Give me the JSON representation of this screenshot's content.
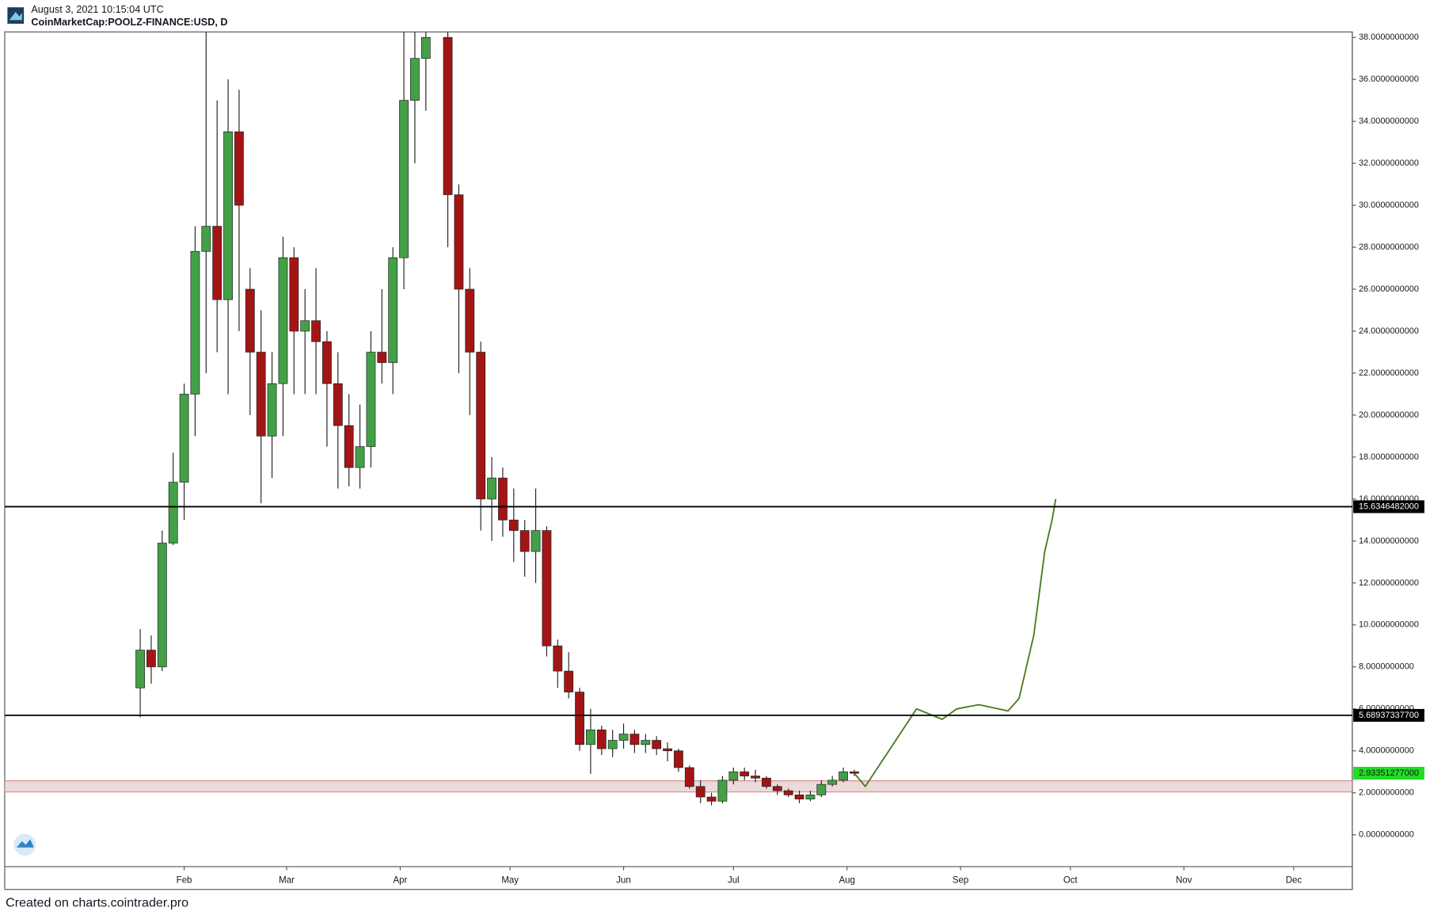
{
  "chart_data": {
    "type": "candlestick",
    "subtitle": "August 3, 2021 10:15:04 UTC",
    "title": "CoinMarketCap:POOLZ-FINANCE:USD, D",
    "credit": "Created on charts.cointrader.pro",
    "up_color": "#43a047",
    "down_color": "#a31515",
    "x": [
      "2021-01-20",
      "2021-01-23",
      "2021-01-26",
      "2021-01-29",
      "2021-02-01",
      "2021-02-04",
      "2021-02-07",
      "2021-02-10",
      "2021-02-13",
      "2021-02-16",
      "2021-02-19",
      "2021-02-22",
      "2021-02-25",
      "2021-02-28",
      "2021-03-03",
      "2021-03-06",
      "2021-03-09",
      "2021-03-12",
      "2021-03-15",
      "2021-03-18",
      "2021-03-21",
      "2021-03-24",
      "2021-03-27",
      "2021-03-30",
      "2021-04-02",
      "2021-04-05",
      "2021-04-08",
      "2021-04-14",
      "2021-04-17",
      "2021-04-20",
      "2021-04-23",
      "2021-04-26",
      "2021-04-29",
      "2021-05-02",
      "2021-05-05",
      "2021-05-08",
      "2021-05-11",
      "2021-05-14",
      "2021-05-17",
      "2021-05-20",
      "2021-05-23",
      "2021-05-26",
      "2021-05-29",
      "2021-06-01",
      "2021-06-04",
      "2021-06-07",
      "2021-06-10",
      "2021-06-13",
      "2021-06-16",
      "2021-06-19",
      "2021-06-22",
      "2021-06-25",
      "2021-06-28",
      "2021-07-01",
      "2021-07-04",
      "2021-07-07",
      "2021-07-10",
      "2021-07-13",
      "2021-07-16",
      "2021-07-19",
      "2021-07-22",
      "2021-07-25",
      "2021-07-28",
      "2021-07-31",
      "2021-08-03"
    ],
    "open": [
      7.0,
      8.8,
      8.0,
      13.9,
      16.8,
      21.0,
      27.8,
      29,
      25.5,
      33.5,
      26,
      23,
      19,
      21.5,
      27.5,
      24,
      24.5,
      23.5,
      21.5,
      19.5,
      17.5,
      18.5,
      23,
      22.5,
      27.5,
      35,
      37,
      38,
      30.5,
      26,
      23,
      16,
      17,
      15,
      14.5,
      13.5,
      14.5,
      9,
      7.8,
      6.8,
      4.3,
      5.0,
      4.1,
      4.5,
      4.8,
      4.3,
      4.5,
      4.1,
      4.0,
      3.2,
      2.3,
      1.8,
      1.6,
      2.6,
      3.0,
      2.8,
      2.7,
      2.3,
      2.1,
      1.9,
      1.7,
      1.9,
      2.4,
      2.6,
      3.0
    ],
    "high": [
      9.8,
      9.5,
      14.5,
      18.2,
      21.5,
      29,
      38.3,
      35,
      36,
      35.5,
      27,
      25,
      23,
      28.5,
      28,
      26,
      27,
      24,
      23,
      21,
      20.5,
      24,
      26,
      28,
      38.3,
      38.3,
      38.3,
      38.3,
      31,
      27,
      23.5,
      18,
      17.5,
      16.5,
      15,
      16.5,
      14.7,
      9.3,
      8.7,
      7.0,
      6.0,
      5.2,
      5.0,
      5.3,
      5.0,
      4.8,
      4.7,
      4.4,
      4.1,
      3.3,
      2.6,
      2.0,
      2.8,
      3.2,
      3.2,
      3.1,
      2.8,
      2.4,
      2.2,
      2.1,
      2.1,
      2.6,
      2.8,
      3.2,
      3.1
    ],
    "low": [
      5.6,
      7.2,
      7.8,
      13.8,
      15.0,
      19.0,
      22,
      23,
      21,
      24,
      20,
      15.8,
      17,
      19,
      21,
      21,
      21,
      18.5,
      16.5,
      16.6,
      16.5,
      17.5,
      21.5,
      21,
      26,
      32,
      34.5,
      28,
      22,
      20,
      14.5,
      14,
      14.2,
      13,
      12.3,
      12.0,
      8.5,
      7.0,
      6.5,
      4.0,
      2.9,
      3.8,
      3.7,
      4.1,
      3.9,
      3.9,
      3.8,
      3.5,
      3.0,
      2.2,
      1.5,
      1.4,
      1.5,
      2.4,
      2.6,
      2.5,
      2.2,
      1.9,
      1.8,
      1.5,
      1.6,
      1.8,
      2.3,
      2.5,
      2.8
    ],
    "close": [
      8.8,
      8.0,
      13.9,
      16.8,
      21.0,
      27.8,
      29,
      25.5,
      33.5,
      30,
      23,
      19,
      21.5,
      27.5,
      24,
      24.5,
      23.5,
      21.5,
      19.5,
      17.5,
      18.5,
      23,
      22.5,
      27.5,
      35,
      37,
      38,
      30.5,
      26,
      23,
      16,
      17,
      15,
      14.5,
      13.5,
      14.5,
      9.0,
      7.8,
      6.8,
      4.3,
      5.0,
      4.1,
      4.5,
      4.8,
      4.3,
      4.5,
      4.1,
      4.0,
      3.2,
      2.3,
      1.8,
      1.6,
      2.6,
      3.0,
      2.8,
      2.7,
      2.3,
      2.1,
      1.9,
      1.7,
      1.9,
      2.4,
      2.6,
      3.0,
      2.93
    ],
    "levels": [
      {
        "value": 15.6346482,
        "label": "15.6346482000"
      },
      {
        "value": 5.689373377,
        "label": "5.68937337700"
      }
    ],
    "last_price": {
      "value": 2.93351277,
      "label": "2.93351277000",
      "color": "#22dd22"
    },
    "zone": [
      2.04,
      2.57
    ],
    "projection": {
      "color": "#4a7a1f",
      "x": [
        "2021-08-03",
        "2021-08-06",
        "2021-08-20",
        "2021-08-27",
        "2021-08-31",
        "2021-09-06",
        "2021-09-14",
        "2021-09-17",
        "2021-09-21",
        "2021-09-24",
        "2021-09-26",
        "2021-09-27"
      ],
      "values": [
        2.93,
        2.3,
        6.0,
        5.5,
        6.0,
        6.2,
        5.9,
        6.5,
        9.5,
        13.5,
        15,
        16.0
      ]
    },
    "xlim": [
      "2020-12-14",
      "2021-12-17"
    ],
    "xticks": [
      {
        "value": "2021-02-01",
        "label": "Feb"
      },
      {
        "value": "2021-03-01",
        "label": "Mar"
      },
      {
        "value": "2021-04-01",
        "label": "Apr"
      },
      {
        "value": "2021-05-01",
        "label": "May"
      },
      {
        "value": "2021-06-01",
        "label": "Jun"
      },
      {
        "value": "2021-07-01",
        "label": "Jul"
      },
      {
        "value": "2021-08-01",
        "label": "Aug"
      },
      {
        "value": "2021-09-01",
        "label": "Sep"
      },
      {
        "value": "2021-10-01",
        "label": "Oct"
      },
      {
        "value": "2021-11-01",
        "label": "Nov"
      },
      {
        "value": "2021-12-01",
        "label": "Dec"
      }
    ],
    "ylim": [
      -1.52,
      38.26
    ],
    "yticks": [
      {
        "value": 0,
        "label": "0.0000000000"
      },
      {
        "value": 2,
        "label": "2.0000000000"
      },
      {
        "value": 4,
        "label": "4.0000000000"
      },
      {
        "value": 6,
        "label": "6.0000000000"
      },
      {
        "value": 8,
        "label": "8.0000000000"
      },
      {
        "value": 10,
        "label": "10.0000000000"
      },
      {
        "value": 12,
        "label": "12.0000000000"
      },
      {
        "value": 14,
        "label": "14.0000000000"
      },
      {
        "value": 16,
        "label": "16.0000000000"
      },
      {
        "value": 18,
        "label": "18.0000000000"
      },
      {
        "value": 20,
        "label": "20.0000000000"
      },
      {
        "value": 22,
        "label": "22.0000000000"
      },
      {
        "value": 24,
        "label": "24.0000000000"
      },
      {
        "value": 26,
        "label": "26.0000000000"
      },
      {
        "value": 28,
        "label": "28.0000000000"
      },
      {
        "value": 30,
        "label": "30.0000000000"
      },
      {
        "value": 32,
        "label": "32.0000000000"
      },
      {
        "value": 34,
        "label": "34.0000000000"
      },
      {
        "value": 36,
        "label": "36.0000000000"
      },
      {
        "value": 38,
        "label": "38.0000000000"
      }
    ]
  }
}
